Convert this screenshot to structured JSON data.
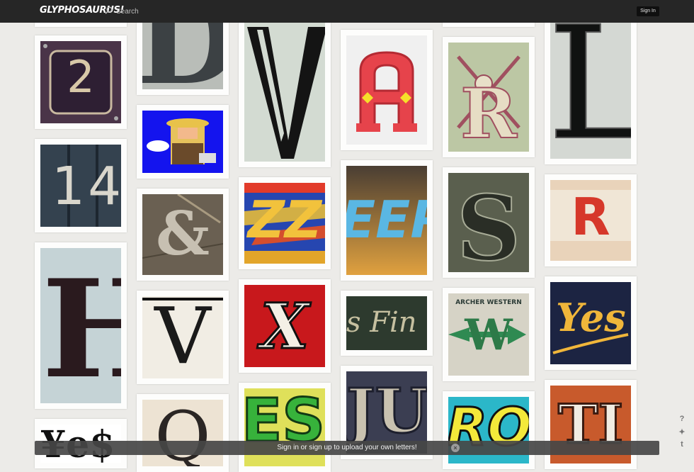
{
  "header": {
    "logo": "GLYPHOSAURUS!",
    "search_label": "Search",
    "sign_in_label": "Sign In"
  },
  "banner": {
    "text": "Sign in or sign up to upload your own letters!",
    "close_symbol": "×"
  },
  "side_icons": [
    "help-icon",
    "twitter-icon",
    "tumblr-icon"
  ],
  "side_icon_glyphs": [
    "?",
    "✦",
    "t"
  ],
  "tiles": [
    {
      "name": "tile-2",
      "glyph": "2"
    },
    {
      "name": "tile-14",
      "glyph": "14"
    },
    {
      "name": "tile-H",
      "glyph": "H"
    },
    {
      "name": "tile-yes-black",
      "glyph": "¥e$"
    },
    {
      "name": "tile-D-partial",
      "glyph": "D"
    },
    {
      "name": "tile-blue-game",
      "glyph": ""
    },
    {
      "name": "tile-ampersand",
      "glyph": "&"
    },
    {
      "name": "tile-V-serif",
      "glyph": "V"
    },
    {
      "name": "tile-Q",
      "glyph": "Q"
    },
    {
      "name": "tile-V-large",
      "glyph": "V"
    },
    {
      "name": "tile-ZZ",
      "glyph": "ZZ"
    },
    {
      "name": "tile-X",
      "glyph": "X"
    },
    {
      "name": "tile-ES-green",
      "glyph": "ES"
    },
    {
      "name": "tile-A-red",
      "glyph": "A"
    },
    {
      "name": "tile-EEP",
      "glyph": "EEP"
    },
    {
      "name": "tile-fine",
      "glyph": "s Fin"
    },
    {
      "name": "tile-JU",
      "glyph": "JU"
    },
    {
      "name": "tile-R-skull",
      "glyph": "R"
    },
    {
      "name": "tile-S",
      "glyph": "S"
    },
    {
      "name": "tile-archer-western",
      "glyph": "W",
      "caption": "ARCHER WESTERN"
    },
    {
      "name": "tile-RO",
      "glyph": "RO"
    },
    {
      "name": "tile-L",
      "glyph": "L"
    },
    {
      "name": "tile-R-red",
      "glyph": "R"
    },
    {
      "name": "tile-yes-gold",
      "glyph": "Yes"
    },
    {
      "name": "tile-TI",
      "glyph": "TI"
    }
  ]
}
